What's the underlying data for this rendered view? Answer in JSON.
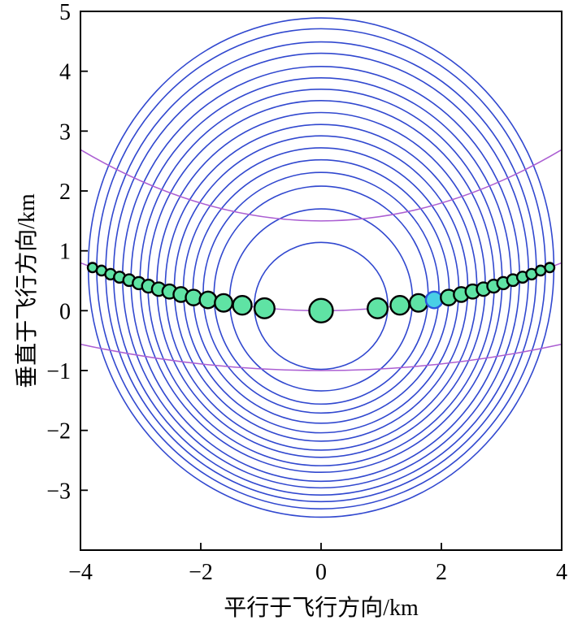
{
  "figure": {
    "title": "",
    "x_axis_title": "平行于飞行方向/km",
    "y_axis_title": "垂直于飞行方向/km"
  },
  "chart_data": {
    "type": "scatter",
    "title": "",
    "xlabel": "平行于飞行方向/km",
    "ylabel": "垂直于飞行方向/km",
    "xlim": [
      -4,
      4
    ],
    "ylim": [
      -4,
      5
    ],
    "grid": false,
    "legend": "none",
    "xtick_labels": [
      {
        "v": -4,
        "label": "−4"
      },
      {
        "v": -2,
        "label": "−2"
      },
      {
        "v": 0,
        "label": "0"
      },
      {
        "v": 2,
        "label": "2"
      },
      {
        "v": 4,
        "label": "4"
      }
    ],
    "xtick_marks": [
      -2,
      0,
      2
    ],
    "ytick_labels": [
      {
        "v": 5,
        "label": "5"
      },
      {
        "v": 4,
        "label": "4"
      },
      {
        "v": 3,
        "label": "3"
      },
      {
        "v": 2,
        "label": "2"
      },
      {
        "v": 1,
        "label": "1"
      },
      {
        "v": 0,
        "label": "0"
      },
      {
        "v": -1,
        "label": "−1"
      },
      {
        "v": -2,
        "label": "−2"
      },
      {
        "v": -3,
        "label": "−3"
      }
    ],
    "ytick_marks": [
      5,
      4,
      3,
      2,
      1,
      0,
      -1,
      -2,
      -3
    ],
    "colors": {
      "ring_blue": "#3148cf",
      "iso_doppler_purple": "#ab5ed2",
      "marker_fill": "#5fe3a4",
      "marker_edge": "#000000",
      "special_marker_fill": "#49cfe6",
      "special_marker_edge": "#2b55dd",
      "axis": "#000000",
      "background": "#ffffff"
    },
    "range_rings": [
      {
        "a": 1.11,
        "b": 1.06,
        "cy": 0.08
      },
      {
        "a": 1.52,
        "b": 1.52,
        "cy": 0.18
      },
      {
        "a": 1.78,
        "b": 1.82,
        "cy": 0.26
      },
      {
        "a": 1.96,
        "b": 2.01,
        "cy": 0.3
      },
      {
        "a": 2.13,
        "b": 2.2,
        "cy": 0.32
      },
      {
        "a": 2.29,
        "b": 2.38,
        "cy": 0.34
      },
      {
        "a": 2.44,
        "b": 2.55,
        "cy": 0.37
      },
      {
        "a": 2.59,
        "b": 2.72,
        "cy": 0.39
      },
      {
        "a": 2.73,
        "b": 2.88,
        "cy": 0.43
      },
      {
        "a": 2.88,
        "b": 3.05,
        "cy": 0.46
      },
      {
        "a": 3.01,
        "b": 3.2,
        "cy": 0.5
      },
      {
        "a": 3.16,
        "b": 3.37,
        "cy": 0.52
      },
      {
        "a": 3.3,
        "b": 3.52,
        "cy": 0.56
      },
      {
        "a": 3.45,
        "b": 3.69,
        "cy": 0.61
      },
      {
        "a": 3.58,
        "b": 3.84,
        "cy": 0.65
      },
      {
        "a": 3.73,
        "b": 4.01,
        "cy": 0.7
      },
      {
        "a": 3.87,
        "b": 4.17,
        "cy": 0.72
      }
    ],
    "iso_doppler_curves": [
      {
        "vertex_y": 1.5,
        "edge_y": 2.69
      },
      {
        "vertex_y": 0.0,
        "edge_y": 0.8
      },
      {
        "vertex_y": -1.0,
        "edge_y": -0.56
      }
    ],
    "markers": [
      {
        "x": -3.8,
        "y": 0.72,
        "r": 5.8
      },
      {
        "x": -3.65,
        "y": 0.67,
        "r": 6.1
      },
      {
        "x": -3.5,
        "y": 0.61,
        "r": 6.5
      },
      {
        "x": -3.35,
        "y": 0.56,
        "r": 6.8
      },
      {
        "x": -3.19,
        "y": 0.51,
        "r": 7.2
      },
      {
        "x": -3.03,
        "y": 0.46,
        "r": 7.5
      },
      {
        "x": -2.87,
        "y": 0.41,
        "r": 7.9
      },
      {
        "x": -2.7,
        "y": 0.36,
        "r": 8.3
      },
      {
        "x": -2.52,
        "y": 0.32,
        "r": 8.7
      },
      {
        "x": -2.33,
        "y": 0.27,
        "r": 9.1
      },
      {
        "x": -2.12,
        "y": 0.22,
        "r": 9.6
      },
      {
        "x": -1.88,
        "y": 0.18,
        "r": 10.2
      },
      {
        "x": -1.62,
        "y": 0.13,
        "r": 10.8
      },
      {
        "x": -1.31,
        "y": 0.09,
        "r": 11.5
      },
      {
        "x": -0.94,
        "y": 0.04,
        "r": 12.3
      },
      {
        "x": 0.0,
        "y": 0.0,
        "r": 14.5
      },
      {
        "x": 0.94,
        "y": 0.04,
        "r": 12.3
      },
      {
        "x": 1.31,
        "y": 0.09,
        "r": 11.5
      },
      {
        "x": 1.62,
        "y": 0.13,
        "r": 10.8
      },
      {
        "x": 1.88,
        "y": 0.18,
        "r": 10.2,
        "special": true
      },
      {
        "x": 2.12,
        "y": 0.22,
        "r": 9.6
      },
      {
        "x": 2.33,
        "y": 0.27,
        "r": 9.1
      },
      {
        "x": 2.52,
        "y": 0.32,
        "r": 8.7
      },
      {
        "x": 2.7,
        "y": 0.36,
        "r": 8.3
      },
      {
        "x": 2.87,
        "y": 0.41,
        "r": 7.9
      },
      {
        "x": 3.03,
        "y": 0.46,
        "r": 7.5
      },
      {
        "x": 3.19,
        "y": 0.51,
        "r": 7.2
      },
      {
        "x": 3.35,
        "y": 0.56,
        "r": 6.8
      },
      {
        "x": 3.5,
        "y": 0.61,
        "r": 6.5
      },
      {
        "x": 3.65,
        "y": 0.67,
        "r": 6.1
      },
      {
        "x": 3.8,
        "y": 0.72,
        "r": 5.8
      }
    ]
  }
}
